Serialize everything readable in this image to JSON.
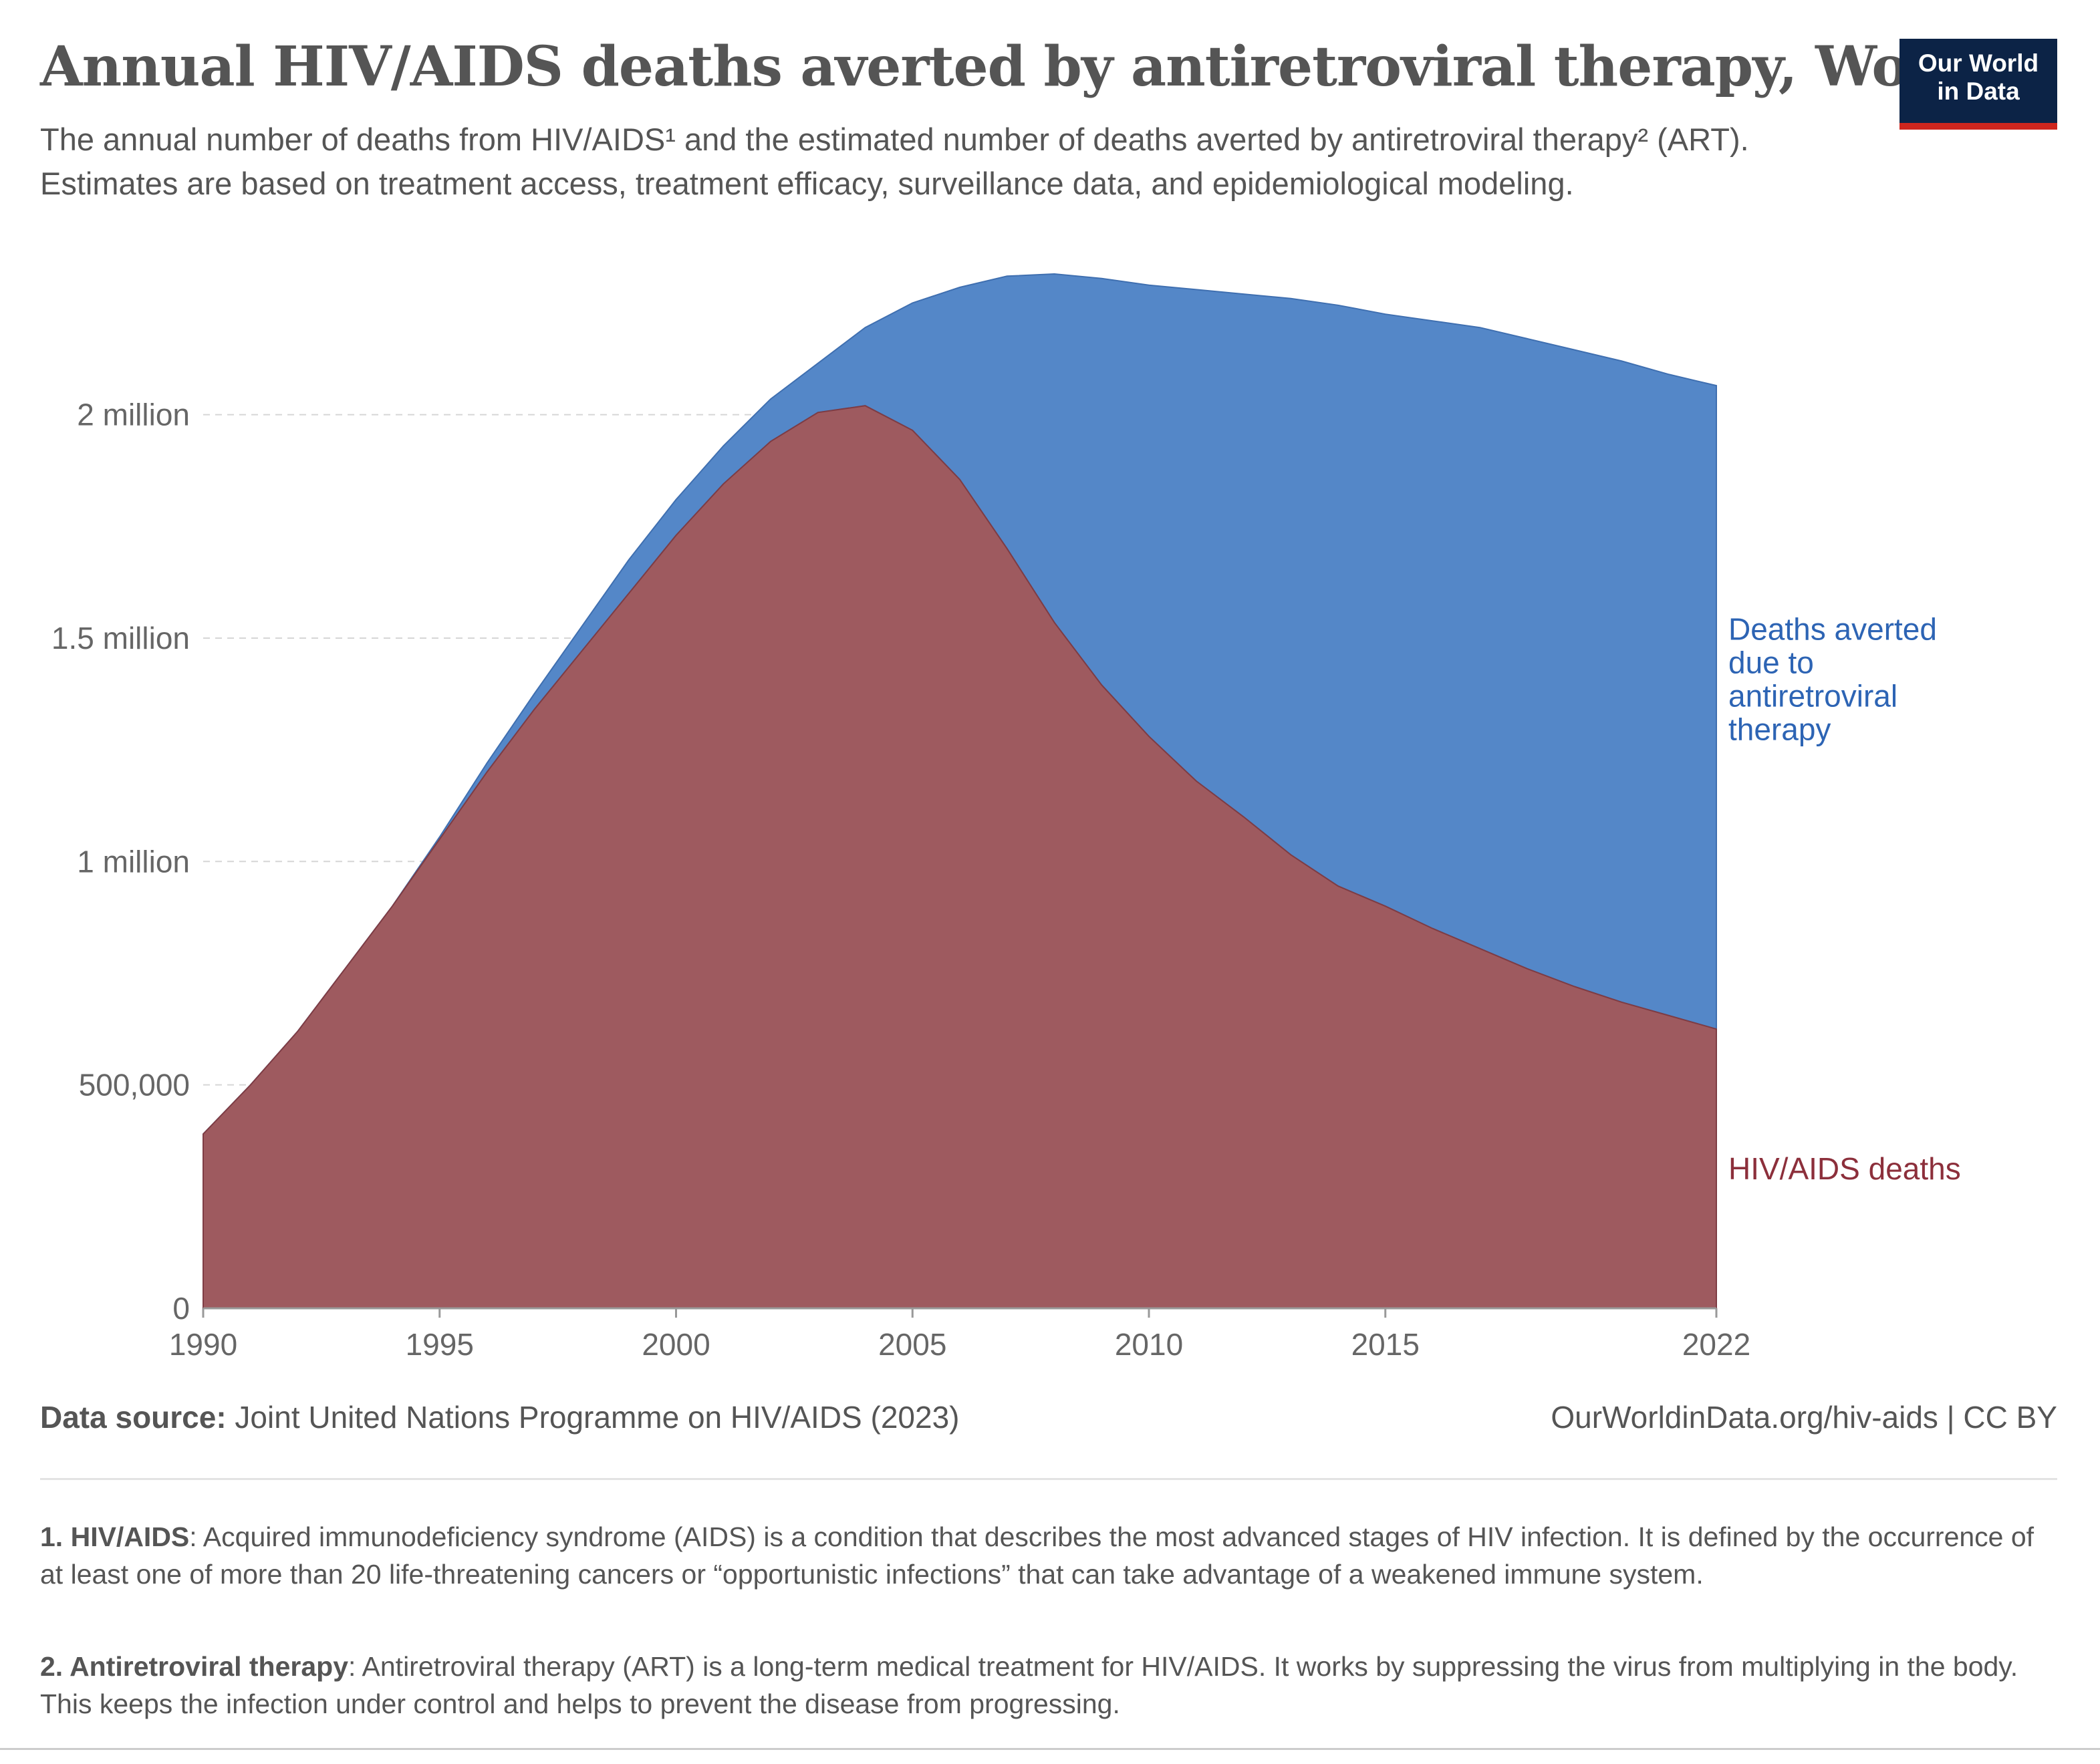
{
  "header": {
    "title": "Annual HIV/AIDS deaths averted by antiretroviral therapy, World",
    "subtitle": "The annual number of deaths from HIV/AIDS¹ and the estimated number of deaths averted by antiretroviral therapy² (ART). Estimates are based on treatment access, treatment efficacy, surveillance data, and epidemiological modeling."
  },
  "logo": {
    "line1": "Our World",
    "line2": "in Data",
    "bg_color": "#0c2346",
    "accent_color": "#ce261e"
  },
  "footer": {
    "source_label": "Data source:",
    "source_text": " Joint United Nations Programme on HIV/AIDS (2023)",
    "url": "OurWorldinData.org/hiv-aids | CC BY"
  },
  "notes": [
    {
      "label": "1. HIV/AIDS",
      "text": ": Acquired immunodeficiency syndrome (AIDS) is a condition that describes the most advanced stages of HIV infection. It is defined by the occurrence of at least one of more than 20 life-threatening cancers or “opportunistic infections” that can take advantage of a weakened immune system."
    },
    {
      "label": "2. Antiretroviral therapy",
      "text": ": Antiretroviral therapy (ART) is a long-term medical treatment for HIV/AIDS. It works by suppressing the virus from multiplying in the body. This keeps the infection under control and helps to prevent the disease from progressing."
    }
  ],
  "chart_data": {
    "type": "area",
    "stacked": true,
    "x": [
      1990,
      1991,
      1992,
      1993,
      1994,
      1995,
      1996,
      1997,
      1998,
      1999,
      2000,
      2001,
      2002,
      2003,
      2004,
      2005,
      2006,
      2007,
      2008,
      2009,
      2010,
      2011,
      2012,
      2013,
      2014,
      2015,
      2016,
      2017,
      2018,
      2019,
      2020,
      2021,
      2022
    ],
    "xlim": [
      1990,
      2022
    ],
    "x_ticks": [
      "1990",
      "1995",
      "2000",
      "2005",
      "2010",
      "2015",
      "2022"
    ],
    "ylim": [
      0,
      2300000
    ],
    "y_ticks": [
      {
        "value": 0,
        "label": "0"
      },
      {
        "value": 500000,
        "label": "500,000"
      },
      {
        "value": 1000000,
        "label": "1 million"
      },
      {
        "value": 1500000,
        "label": "1.5 million"
      },
      {
        "value": 2000000,
        "label": "2 million"
      }
    ],
    "grid": "horizontal-dashed",
    "series": [
      {
        "name": "HIV/AIDS deaths",
        "color": "#9e5a5f",
        "label_color": "#8c2f3b",
        "values": [
          390000,
          500000,
          620000,
          760000,
          900000,
          1050000,
          1200000,
          1340000,
          1470000,
          1600000,
          1730000,
          1845000,
          1940000,
          2005000,
          2020000,
          1965000,
          1855000,
          1700000,
          1535000,
          1395000,
          1280000,
          1180000,
          1100000,
          1015000,
          945000,
          900000,
          850000,
          805000,
          760000,
          720000,
          685000,
          655000,
          625000
        ]
      },
      {
        "name": "Deaths averted due to antiretroviral therapy",
        "color": "#5487c8",
        "label_color": "#2d64b4",
        "values": [
          0,
          0,
          0,
          0,
          0,
          5000,
          20000,
          35000,
          55000,
          75000,
          80000,
          85000,
          95000,
          110000,
          175000,
          285000,
          430000,
          610000,
          780000,
          910000,
          1010000,
          1100000,
          1170000,
          1245000,
          1300000,
          1325000,
          1360000,
          1390000,
          1410000,
          1425000,
          1435000,
          1435000,
          1440000
        ]
      }
    ],
    "legend": "inline-right"
  }
}
